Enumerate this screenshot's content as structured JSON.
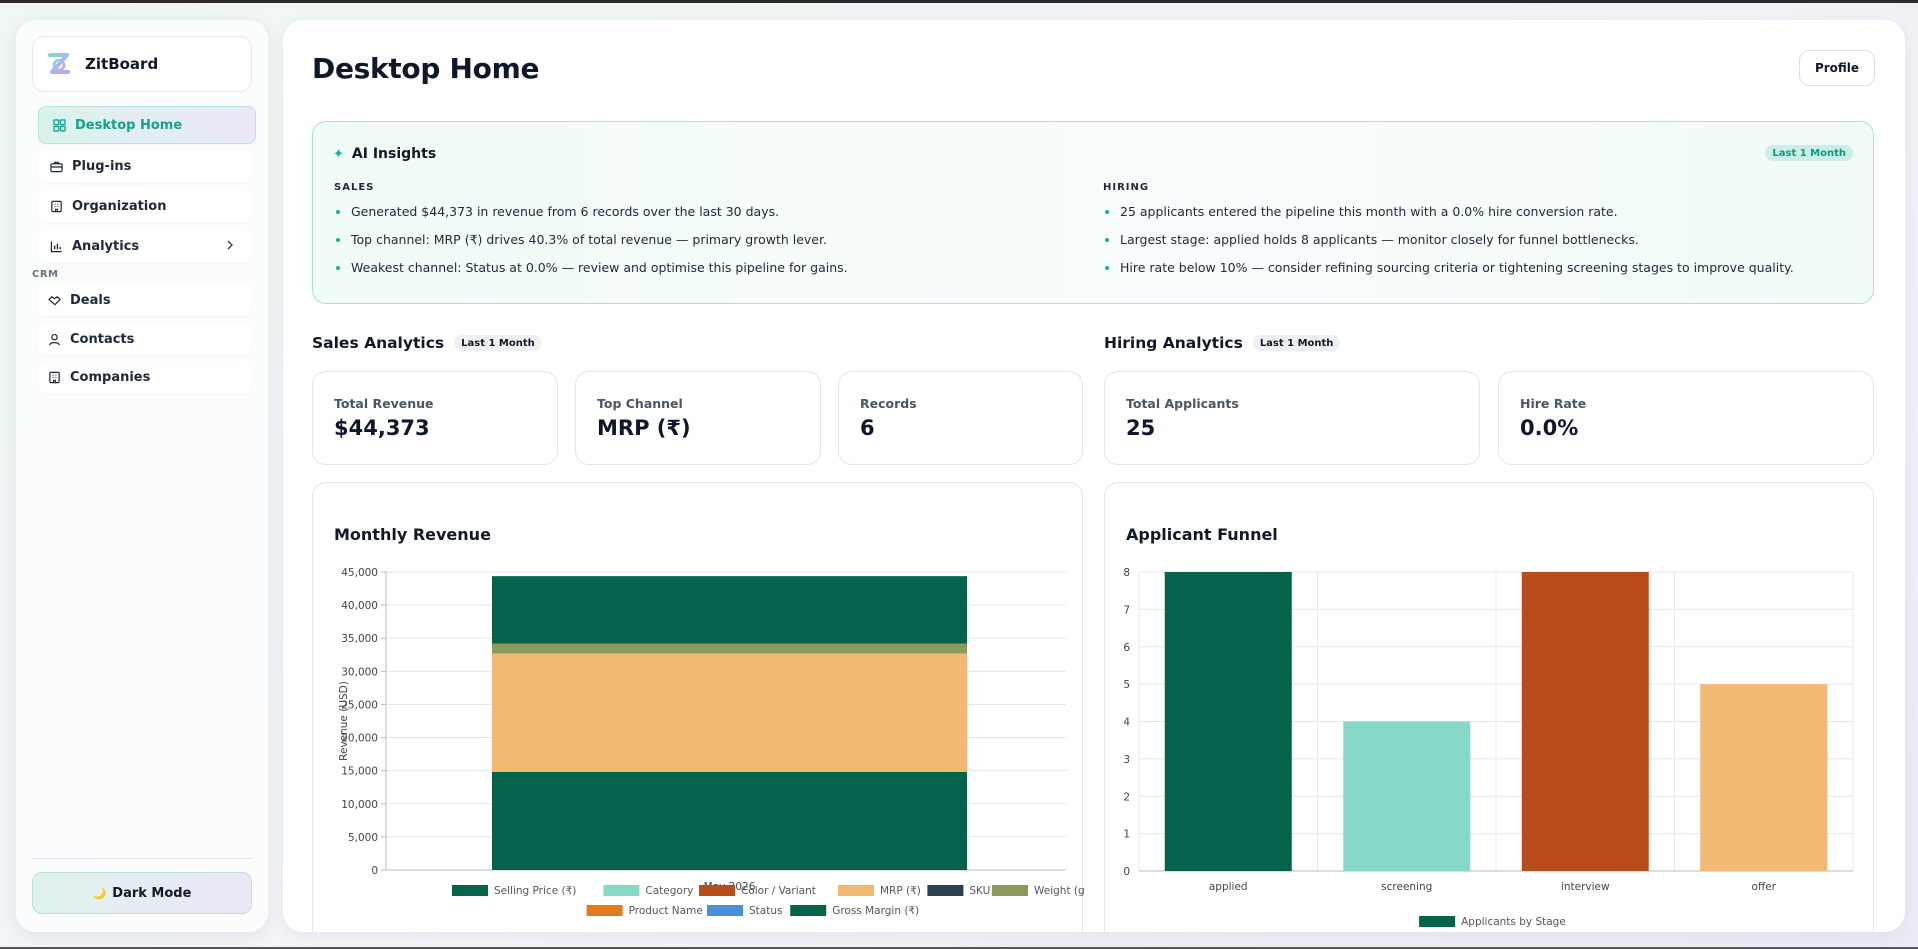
{
  "app": {
    "name": "ZitBoard"
  },
  "sidebar": {
    "items": [
      {
        "label": "Desktop Home",
        "icon": "dashboard-icon",
        "active": true
      },
      {
        "label": "Plug-ins",
        "icon": "briefcase-icon"
      },
      {
        "label": "Organization",
        "icon": "building-icon"
      },
      {
        "label": "Analytics",
        "icon": "bar-chart-icon",
        "has_submenu": true
      }
    ],
    "crm_label": "CRM",
    "crm_items": [
      {
        "label": "Deals",
        "icon": "handshake-icon"
      },
      {
        "label": "Contacts",
        "icon": "user-icon"
      },
      {
        "label": "Companies",
        "icon": "building-icon"
      }
    ],
    "dark_mode_label": "Dark Mode",
    "dark_mode_icon": "🌙"
  },
  "header": {
    "title": "Desktop Home",
    "profile_label": "Profile"
  },
  "insights": {
    "title": "AI Insights",
    "badge": "Last 1 Month",
    "sales": {
      "heading": "SALES",
      "items": [
        "Generated $44,373 in revenue from 6 records over the last 30 days.",
        "Top channel: MRP (₹) drives 40.3% of total revenue — primary growth lever.",
        "Weakest channel: Status at 0.0% — review and optimise this pipeline for gains."
      ]
    },
    "hiring": {
      "heading": "HIRING",
      "items": [
        "25 applicants entered the pipeline this month with a 0.0% hire conversion rate.",
        "Largest stage: applied holds 8 applicants — monitor closely for funnel bottlenecks.",
        "Hire rate below 10% — consider refining sourcing criteria or tightening screening stages to improve quality."
      ]
    }
  },
  "sales_analytics": {
    "title": "Sales Analytics",
    "badge": "Last 1 Month",
    "kpis": [
      {
        "label": "Total Revenue",
        "value": "$44,373"
      },
      {
        "label": "Top Channel",
        "value": "MRP (₹)"
      },
      {
        "label": "Records",
        "value": "6"
      }
    ]
  },
  "hiring_analytics": {
    "title": "Hiring Analytics",
    "badge": "Last 1 Month",
    "kpis": [
      {
        "label": "Total Applicants",
        "value": "25"
      },
      {
        "label": "Hire Rate",
        "value": "0.0%"
      }
    ]
  },
  "colors": {
    "accent": "#17b294",
    "dark_green": "#04634a",
    "mint": "#86d9c4",
    "rust": "#b84c1b",
    "peach": "#f2b975",
    "navy": "#2c3e50",
    "olive": "#8a9a5b",
    "orange": "#e07b24",
    "blue": "#4a90d9"
  },
  "chart_data": [
    {
      "type": "bar",
      "stacked": true,
      "title": "Monthly Revenue",
      "categories": [
        "May 2026"
      ],
      "ylabel": "Revenue (USD)",
      "ylim": [
        0,
        45000
      ],
      "yticks": [
        0,
        5000,
        10000,
        15000,
        20000,
        25000,
        30000,
        35000,
        40000,
        45000
      ],
      "ytick_labels": [
        "0",
        "5,000",
        "10,000",
        "15,000",
        "20,000",
        "25,000",
        "30,000",
        "35,000",
        "40,000",
        "45,000"
      ],
      "grid": true,
      "legend_position": "bottom",
      "series": [
        {
          "name": "Selling Price (₹)",
          "color": "#04634a",
          "values": [
            14800
          ]
        },
        {
          "name": "Category",
          "color": "#86d9c4",
          "values": [
            0
          ]
        },
        {
          "name": "Color / Variant",
          "color": "#b84c1b",
          "values": [
            0
          ]
        },
        {
          "name": "MRP (₹)",
          "color": "#f2b975",
          "values": [
            17900
          ]
        },
        {
          "name": "SKU",
          "color": "#2c3e50",
          "values": [
            0
          ]
        },
        {
          "name": "Weight (g)",
          "color": "#8a9a5b",
          "values": [
            1500
          ]
        },
        {
          "name": "Product Name",
          "color": "#e07b24",
          "values": [
            0
          ]
        },
        {
          "name": "Status",
          "color": "#4a90d9",
          "values": [
            0
          ]
        },
        {
          "name": "Gross Margin (₹)",
          "color": "#04634a",
          "values": [
            10173
          ]
        }
      ]
    },
    {
      "type": "bar",
      "title": "Applicant Funnel",
      "categories": [
        "applied",
        "screening",
        "interview",
        "offer"
      ],
      "ylim": [
        0,
        8
      ],
      "yticks": [
        0,
        1,
        2,
        3,
        4,
        5,
        6,
        7,
        8
      ],
      "grid": true,
      "legend_position": "bottom",
      "series": [
        {
          "name": "Applicants by Stage",
          "values": [
            8,
            4,
            8,
            5
          ],
          "colors": [
            "#04634a",
            "#86d9c4",
            "#b84c1b",
            "#f2b975"
          ]
        }
      ]
    }
  ]
}
